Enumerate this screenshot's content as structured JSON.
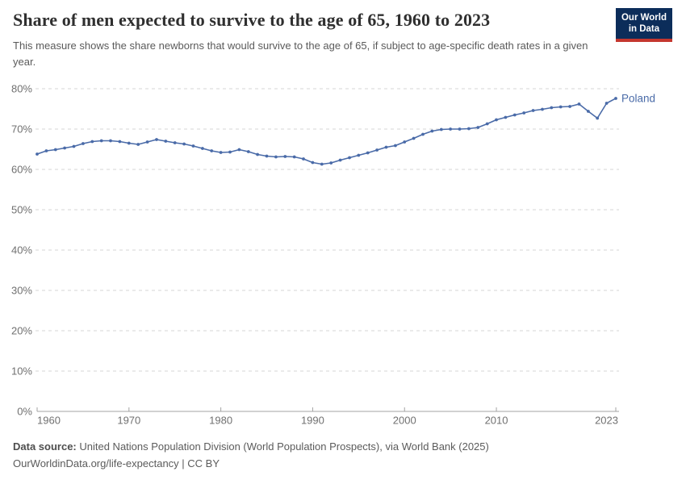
{
  "header": {
    "title": "Share of men expected to survive to the age of 65, 1960 to 2023",
    "subtitle": "This measure shows the share newborns that would survive to the age of 65, if subject to age-specific death rates in a given year.",
    "logo": {
      "line1": "Our World",
      "line2": "in Data"
    }
  },
  "chart_data": {
    "type": "line",
    "title": "Share of men expected to survive to the age of 65, 1960 to 2023",
    "entity_label": "Poland",
    "x": [
      1960,
      1961,
      1962,
      1963,
      1964,
      1965,
      1966,
      1967,
      1968,
      1969,
      1970,
      1971,
      1972,
      1973,
      1974,
      1975,
      1976,
      1977,
      1978,
      1979,
      1980,
      1981,
      1982,
      1983,
      1984,
      1985,
      1986,
      1987,
      1988,
      1989,
      1990,
      1991,
      1992,
      1993,
      1994,
      1995,
      1996,
      1997,
      1998,
      1999,
      2000,
      2001,
      2002,
      2003,
      2004,
      2005,
      2006,
      2007,
      2008,
      2009,
      2010,
      2011,
      2012,
      2013,
      2014,
      2015,
      2016,
      2017,
      2018,
      2019,
      2020,
      2021,
      2022,
      2023
    ],
    "series": [
      {
        "name": "Poland",
        "values": [
          63.8,
          64.6,
          64.9,
          65.3,
          65.7,
          66.4,
          66.9,
          67.1,
          67.1,
          66.9,
          66.5,
          66.2,
          66.8,
          67.4,
          67.0,
          66.6,
          66.3,
          65.8,
          65.2,
          64.6,
          64.2,
          64.3,
          64.9,
          64.4,
          63.7,
          63.3,
          63.1,
          63.2,
          63.1,
          62.6,
          61.7,
          61.3,
          61.6,
          62.3,
          62.9,
          63.5,
          64.1,
          64.8,
          65.5,
          65.9,
          66.8,
          67.7,
          68.7,
          69.5,
          69.9,
          70.0,
          70.0,
          70.1,
          70.4,
          71.3,
          72.3,
          72.9,
          73.5,
          74.0,
          74.6,
          74.9,
          75.3,
          75.5,
          75.6,
          76.2,
          74.4,
          72.7,
          76.4,
          77.6
        ]
      }
    ],
    "xlim": [
      1960,
      2023
    ],
    "ylim": [
      0,
      80
    ],
    "grid": true,
    "legend_position": "end-of-line",
    "yticks": [
      {
        "value": 0,
        "label": "0%"
      },
      {
        "value": 10,
        "label": "10%"
      },
      {
        "value": 20,
        "label": "20%"
      },
      {
        "value": 30,
        "label": "30%"
      },
      {
        "value": 40,
        "label": "40%"
      },
      {
        "value": 50,
        "label": "50%"
      },
      {
        "value": 60,
        "label": "60%"
      },
      {
        "value": 70,
        "label": "70%"
      },
      {
        "value": 80,
        "label": "80%"
      }
    ],
    "xticks": [
      {
        "value": 1960,
        "label": "1960"
      },
      {
        "value": 1970,
        "label": "1970"
      },
      {
        "value": 1980,
        "label": "1980"
      },
      {
        "value": 1990,
        "label": "1990"
      },
      {
        "value": 2000,
        "label": "2000"
      },
      {
        "value": 2010,
        "label": "2010"
      },
      {
        "value": 2023,
        "label": "2023"
      }
    ],
    "colors": {
      "line": "#4a6ba8",
      "grid": "#d6d6d6",
      "axis": "#a3a3a3",
      "tick_label": "#707070"
    }
  },
  "footer": {
    "source_prefix": "Data source:",
    "source_text": " United Nations Population Division (World Population Prospects), via World Bank (2025)",
    "note": "OurWorldinData.org/life-expectancy | CC BY"
  }
}
